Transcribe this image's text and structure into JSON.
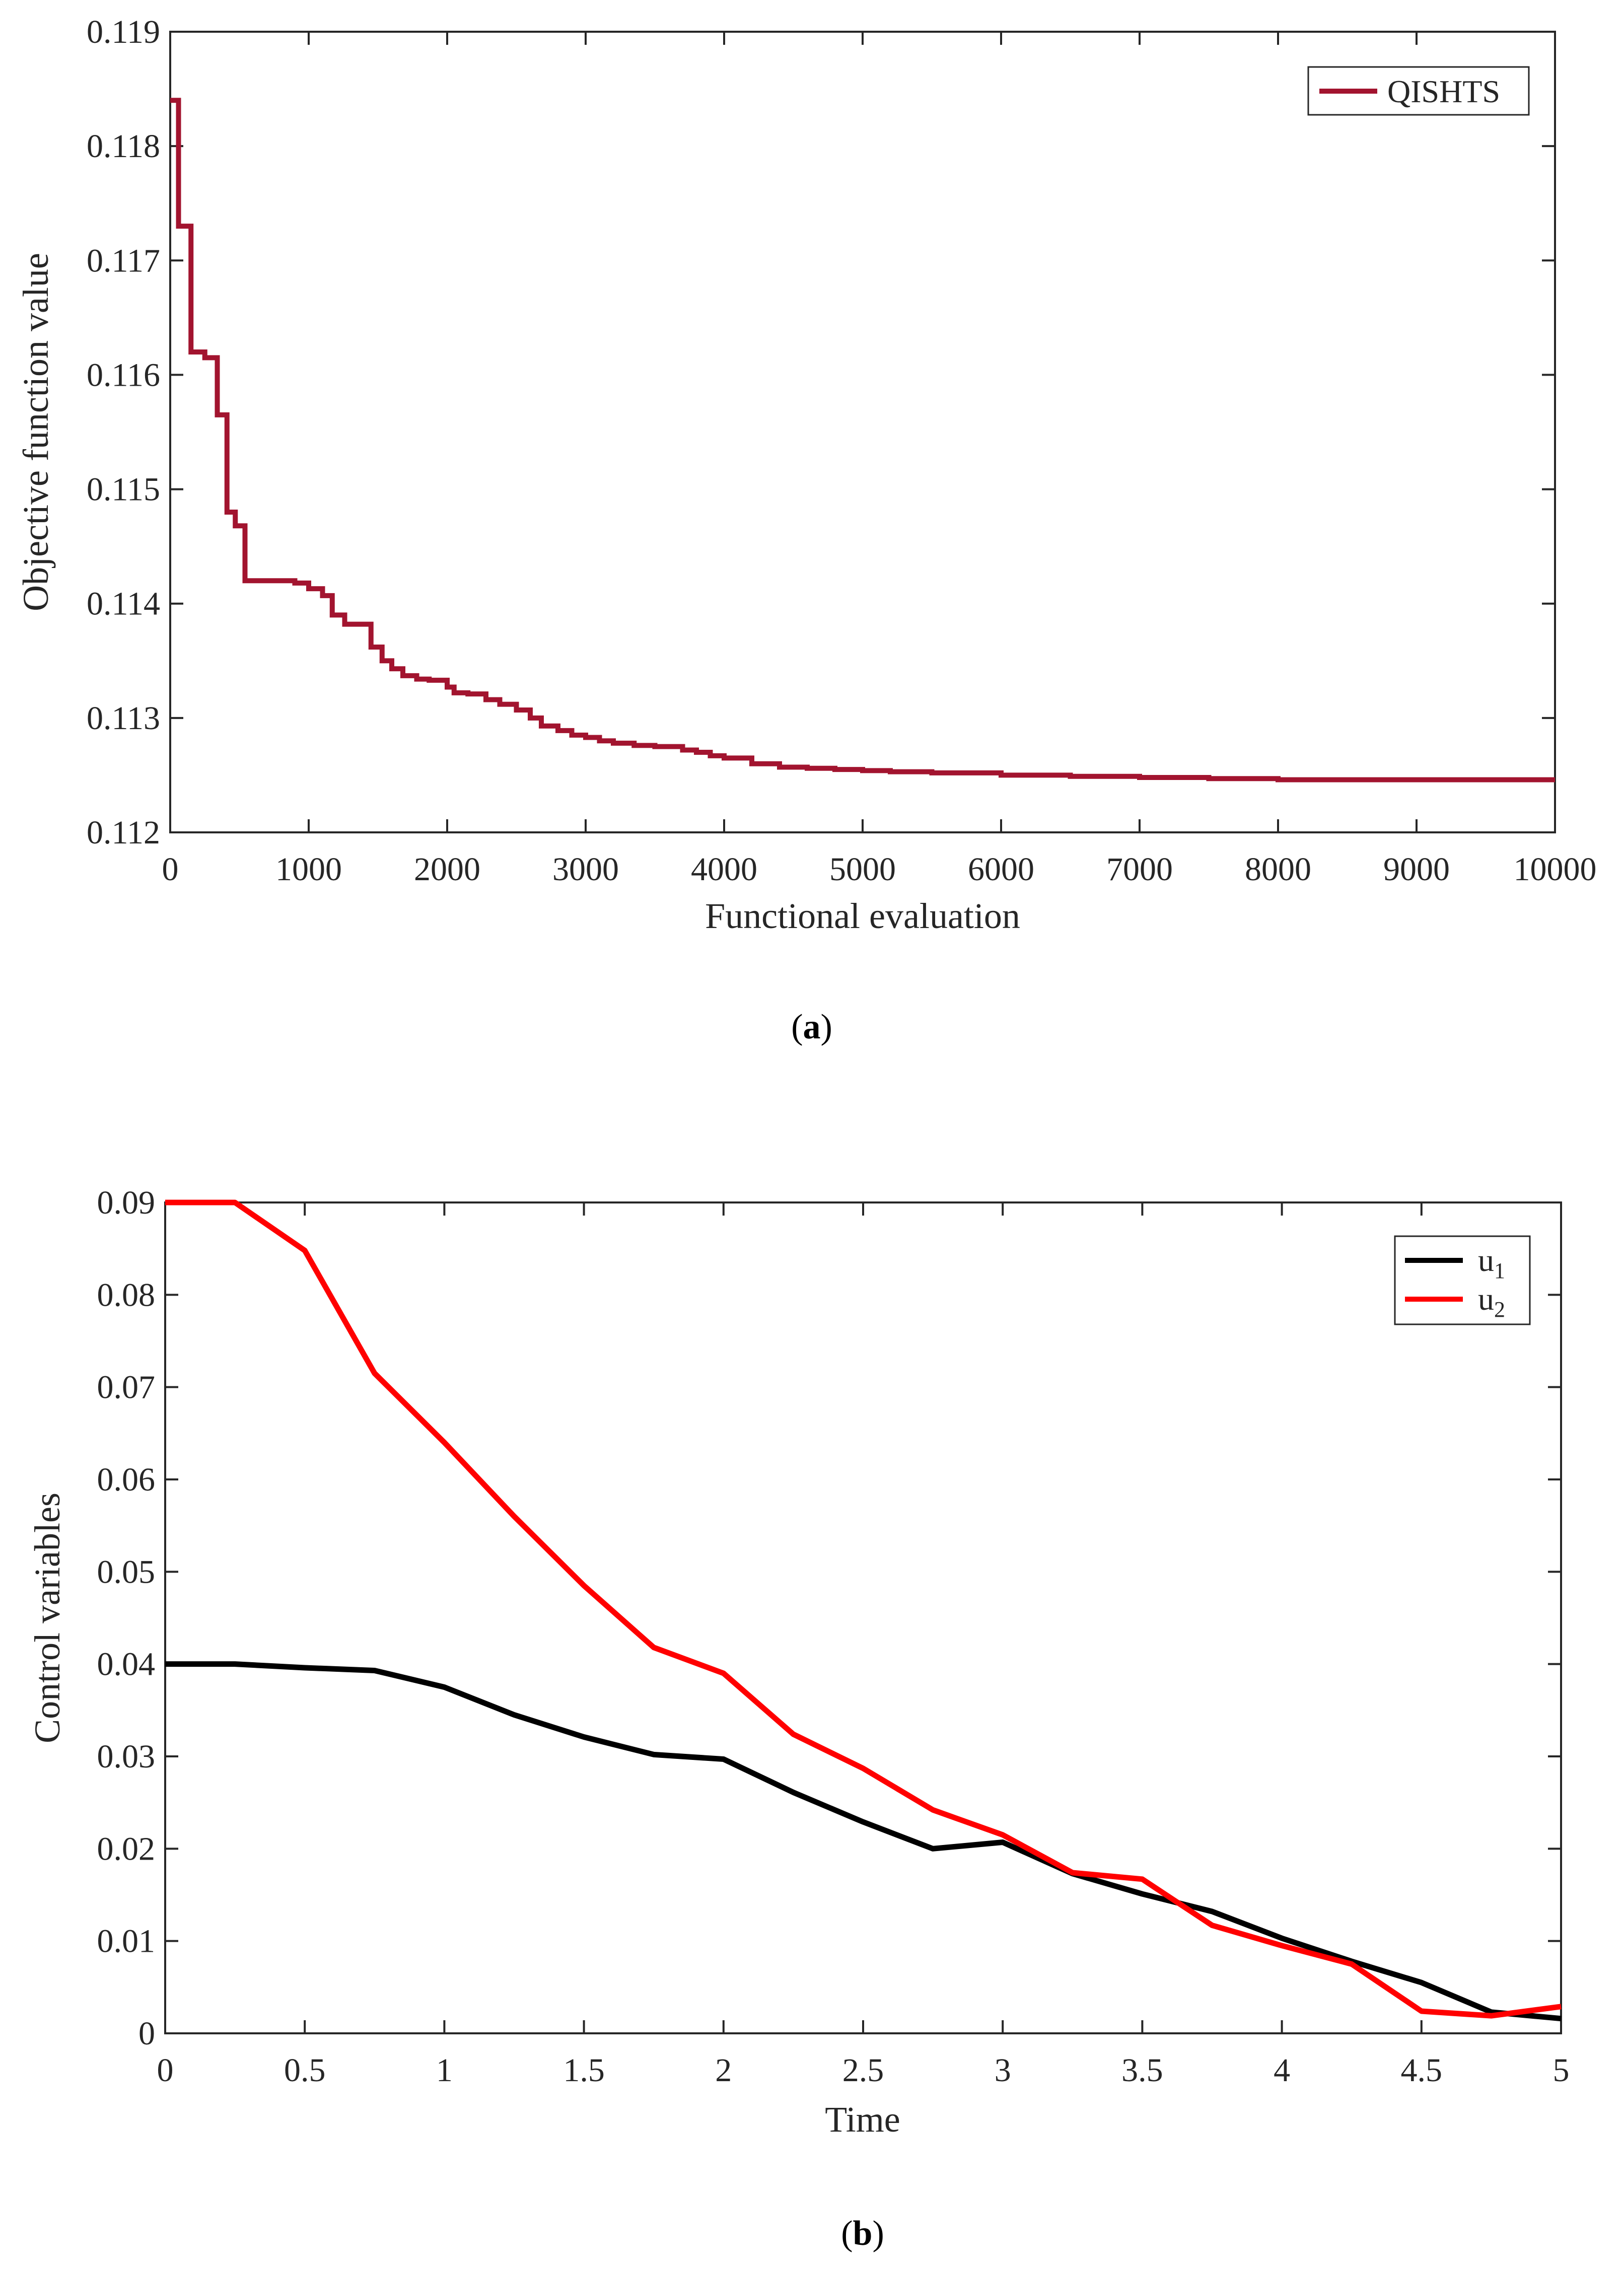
{
  "panels": {
    "a": {
      "caption_open": "(",
      "caption_letter": "a",
      "caption_close": ")"
    },
    "b": {
      "caption_open": "(",
      "caption_letter": "b",
      "caption_close": ")"
    }
  },
  "chart_data": [
    {
      "id": "a",
      "type": "line",
      "title": "",
      "xlabel": "Functional evaluation",
      "ylabel": "Objective function value",
      "xlim": [
        0,
        10000
      ],
      "ylim": [
        0.112,
        0.119
      ],
      "xticks": [
        0,
        1000,
        2000,
        3000,
        4000,
        5000,
        6000,
        7000,
        8000,
        9000,
        10000
      ],
      "xtick_labels": [
        "0",
        "1000",
        "2000",
        "3000",
        "4000",
        "5000",
        "6000",
        "7000",
        "8000",
        "9000",
        "10000"
      ],
      "yticks": [
        0.112,
        0.113,
        0.114,
        0.115,
        0.116,
        0.117,
        0.118,
        0.119
      ],
      "ytick_labels": [
        "0.112",
        "0.113",
        "0.114",
        "0.115",
        "0.116",
        "0.117",
        "0.118",
        "0.119"
      ],
      "grid": false,
      "legend_position": "top-right",
      "series": [
        {
          "name": "QISHTS",
          "color": "#A2142F",
          "step": true,
          "x": [
            0,
            60,
            150,
            250,
            340,
            410,
            470,
            540,
            640,
            750,
            900,
            1000,
            1100,
            1170,
            1260,
            1450,
            1530,
            1600,
            1680,
            1780,
            1870,
            2000,
            2050,
            2150,
            2280,
            2380,
            2500,
            2600,
            2680,
            2800,
            2900,
            3000,
            3100,
            3200,
            3350,
            3500,
            3700,
            3800,
            3900,
            4000,
            4200,
            4400,
            4600,
            4800,
            5000,
            5200,
            5500,
            6000,
            6500,
            7000,
            7500,
            8000,
            9000,
            10000
          ],
          "y": [
            0.1184,
            0.1173,
            0.1162,
            0.11615,
            0.11565,
            0.1148,
            0.11468,
            0.1142,
            0.1142,
            0.1142,
            0.11418,
            0.11413,
            0.11407,
            0.1139,
            0.11382,
            0.11362,
            0.1135,
            0.11343,
            0.11337,
            0.11334,
            0.11333,
            0.11327,
            0.11322,
            0.11321,
            0.11316,
            0.11312,
            0.11307,
            0.113,
            0.11293,
            0.11289,
            0.11285,
            0.11283,
            0.1128,
            0.11278,
            0.11276,
            0.11275,
            0.11272,
            0.1127,
            0.11267,
            0.11265,
            0.1126,
            0.11257,
            0.11256,
            0.11255,
            0.11254,
            0.11253,
            0.11252,
            0.1125,
            0.11249,
            0.11248,
            0.11247,
            0.11246,
            0.11246,
            0.11246
          ]
        }
      ]
    },
    {
      "id": "b",
      "type": "line",
      "title": "",
      "xlabel": "Time",
      "ylabel": "Control  variables",
      "xlim": [
        0,
        5
      ],
      "ylim": [
        0,
        0.09
      ],
      "xticks": [
        0,
        0.5,
        1,
        1.5,
        2,
        2.5,
        3,
        3.5,
        4,
        4.5,
        5
      ],
      "xtick_labels": [
        "0",
        "0.5",
        "1",
        "1.5",
        "2",
        "2.5",
        "3",
        "3.5",
        "4",
        "4.5",
        "5"
      ],
      "yticks": [
        0,
        0.01,
        0.02,
        0.03,
        0.04,
        0.05,
        0.06,
        0.07,
        0.08,
        0.09
      ],
      "ytick_labels": [
        "0",
        "0.01",
        "0.02",
        "0.03",
        "0.04",
        "0.05",
        "0.06",
        "0.07",
        "0.08",
        "0.09"
      ],
      "grid": false,
      "legend_position": "top-right",
      "x": [
        0,
        0.25,
        0.5,
        0.75,
        1,
        1.25,
        1.5,
        1.75,
        2,
        2.25,
        2.5,
        2.75,
        3,
        3.25,
        3.5,
        3.75,
        4,
        4.25,
        4.5,
        4.75,
        5
      ],
      "series": [
        {
          "name": "u",
          "subscript": "1",
          "color": "#000000",
          "values": [
            0.04,
            0.04,
            0.0396,
            0.0393,
            0.0375,
            0.0345,
            0.0321,
            0.0302,
            0.0297,
            0.0261,
            0.0229,
            0.02,
            0.0207,
            0.0173,
            0.0151,
            0.0132,
            0.0103,
            0.0078,
            0.0055,
            0.0023,
            0.0016
          ]
        },
        {
          "name": "u",
          "subscript": "2",
          "color": "#FF0000",
          "values": [
            0.09,
            0.09,
            0.0848,
            0.0715,
            0.064,
            0.056,
            0.0485,
            0.0418,
            0.039,
            0.0324,
            0.0287,
            0.0242,
            0.0215,
            0.0174,
            0.0167,
            0.0117,
            0.0095,
            0.0075,
            0.0024,
            0.0019,
            0.0029
          ]
        }
      ]
    }
  ]
}
